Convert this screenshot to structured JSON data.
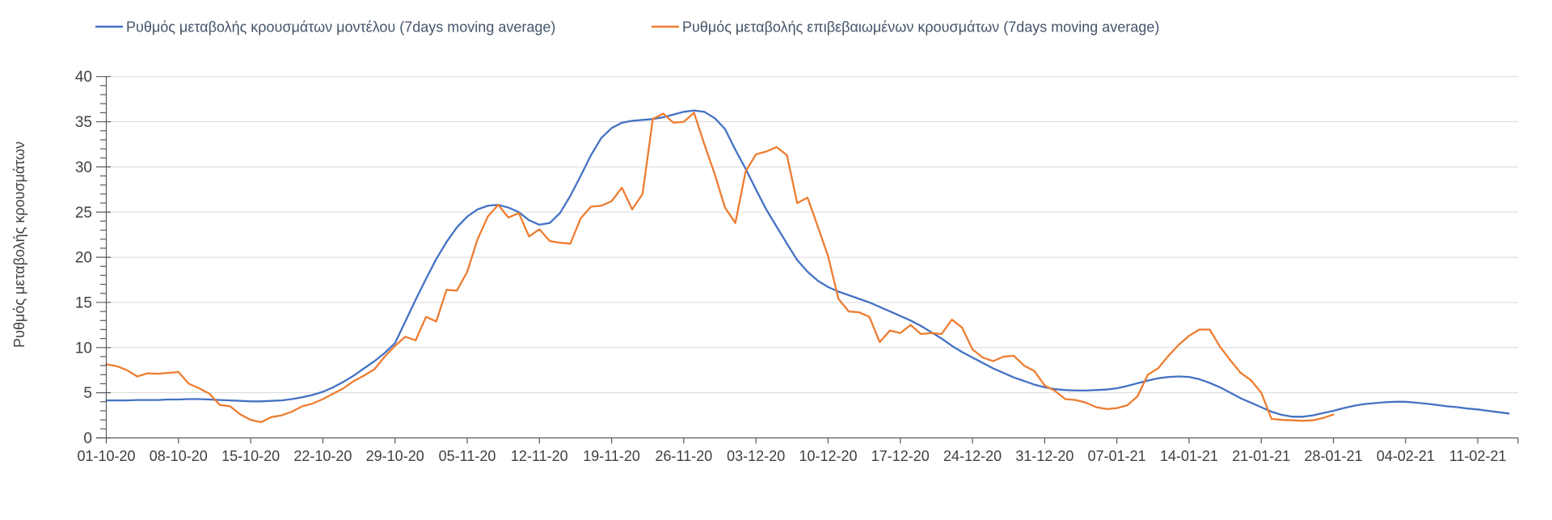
{
  "legend": {
    "items": [
      {
        "id": "model",
        "label": "Ρυθμός μεταβολής κρουσμάτων μοντέλου (7days moving average)",
        "color": "#4472C4"
      },
      {
        "id": "confirmed",
        "label": "Ρυθμός μεταβολής επιβεβαιωμένων κρουσμάτων (7days moving average)",
        "color": "#ED7D31"
      }
    ]
  },
  "y_axis": {
    "title": "Ρυθμός μεταβολής κρουσμάτων",
    "min": 0,
    "max": 40,
    "major_step": 5,
    "minor_step": 1,
    "tick_labels": [
      "0",
      "5",
      "10",
      "15",
      "20",
      "25",
      "30",
      "35",
      "40"
    ]
  },
  "x_axis": {
    "tick_labels": [
      "01-10-20",
      "08-10-20",
      "15-10-20",
      "22-10-20",
      "29-10-20",
      "05-11-20",
      "12-11-20",
      "19-11-20",
      "26-11-20",
      "03-12-20",
      "10-12-20",
      "17-12-20",
      "24-12-20",
      "31-12-20",
      "07-01-21",
      "14-01-21",
      "21-01-21",
      "28-01-21",
      "04-02-21",
      "11-02-21"
    ],
    "days_per_tick": 7
  },
  "chart_data": {
    "type": "line",
    "title": "",
    "xlabel": "",
    "ylabel": "Ρυθμός μεταβολής κρουσμάτων",
    "x_start_date": "01-10-20",
    "x_unit": "day",
    "ylim": [
      0,
      40
    ],
    "grid": "horizontal",
    "legend_position": "top",
    "series": [
      {
        "name": "Ρυθμός μεταβολής κρουσμάτων μοντέλου (7days moving average)",
        "color": "#4472C4",
        "values": [
          4.15,
          4.15,
          4.15,
          4.2,
          4.2,
          4.2,
          4.25,
          4.25,
          4.3,
          4.3,
          4.25,
          4.2,
          4.15,
          4.1,
          4.05,
          4.05,
          4.1,
          4.15,
          4.3,
          4.5,
          4.75,
          5.1,
          5.6,
          6.2,
          6.9,
          7.7,
          8.5,
          9.4,
          10.5,
          12.9,
          15.3,
          17.6,
          19.8,
          21.7,
          23.3,
          24.5,
          25.3,
          25.7,
          25.8,
          25.5,
          25.0,
          24.1,
          23.6,
          23.8,
          24.9,
          26.8,
          29.0,
          31.3,
          33.2,
          34.3,
          34.9,
          35.1,
          35.2,
          35.3,
          35.5,
          35.8,
          36.1,
          36.25,
          36.1,
          35.4,
          34.2,
          31.9,
          29.8,
          27.5,
          25.3,
          23.4,
          21.5,
          19.7,
          18.4,
          17.4,
          16.7,
          16.2,
          15.8,
          15.4,
          15.0,
          14.5,
          14.0,
          13.5,
          13.0,
          12.4,
          11.7,
          11.0,
          10.2,
          9.5,
          8.9,
          8.3,
          7.7,
          7.2,
          6.7,
          6.3,
          5.9,
          5.6,
          5.4,
          5.3,
          5.25,
          5.25,
          5.3,
          5.35,
          5.5,
          5.75,
          6.05,
          6.35,
          6.6,
          6.75,
          6.8,
          6.75,
          6.5,
          6.1,
          5.6,
          5.0,
          4.4,
          3.9,
          3.4,
          2.9,
          2.55,
          2.35,
          2.35,
          2.5,
          2.75,
          3.0,
          3.3,
          3.55,
          3.75,
          3.85,
          3.95,
          4.0,
          4.0,
          3.9,
          3.8,
          3.65,
          3.5,
          3.4,
          3.25,
          3.15,
          3.0,
          2.85,
          2.7
        ]
      },
      {
        "name": "Ρυθμός μεταβολής επιβεβαιωμένων κρουσμάτων (7days moving average)",
        "color": "#ED7D31",
        "values": [
          8.15,
          7.95,
          7.5,
          6.8,
          7.15,
          7.1,
          7.2,
          7.3,
          6.0,
          5.5,
          4.9,
          3.65,
          3.5,
          2.6,
          2.0,
          1.75,
          2.3,
          2.5,
          2.9,
          3.5,
          3.8,
          4.3,
          4.9,
          5.5,
          6.3,
          6.9,
          7.6,
          9.0,
          10.2,
          11.2,
          10.8,
          13.4,
          12.9,
          16.4,
          16.3,
          18.4,
          22.0,
          24.5,
          25.8,
          24.4,
          24.9,
          22.3,
          23.1,
          21.8,
          21.6,
          21.5,
          24.3,
          25.6,
          25.7,
          26.2,
          27.7,
          25.3,
          27.0,
          35.3,
          35.9,
          34.9,
          35.0,
          36.0,
          32.5,
          29.2,
          25.5,
          23.8,
          29.5,
          31.4,
          31.7,
          32.2,
          31.3,
          26.0,
          26.6,
          23.4,
          20.1,
          15.4,
          14.0,
          13.9,
          13.4,
          10.6,
          11.9,
          11.6,
          12.5,
          11.5,
          11.6,
          11.5,
          13.1,
          12.2,
          9.8,
          8.9,
          8.5,
          9.0,
          9.1,
          8.0,
          7.4,
          5.8,
          5.2,
          4.3,
          4.2,
          3.9,
          3.4,
          3.2,
          3.3,
          3.6,
          4.6,
          7.0,
          7.7,
          9.1,
          10.3,
          11.3,
          12.0,
          12.0,
          10.1,
          8.6,
          7.2,
          6.4,
          5.0,
          2.1,
          2.0,
          1.95,
          1.9,
          1.95,
          2.2,
          2.6
        ]
      }
    ]
  },
  "colors": {
    "gridline": "#D9D9D9",
    "axis": "#595959",
    "tick_text": "#404040",
    "legend_text": "#44546A",
    "background": "#FFFFFF"
  }
}
